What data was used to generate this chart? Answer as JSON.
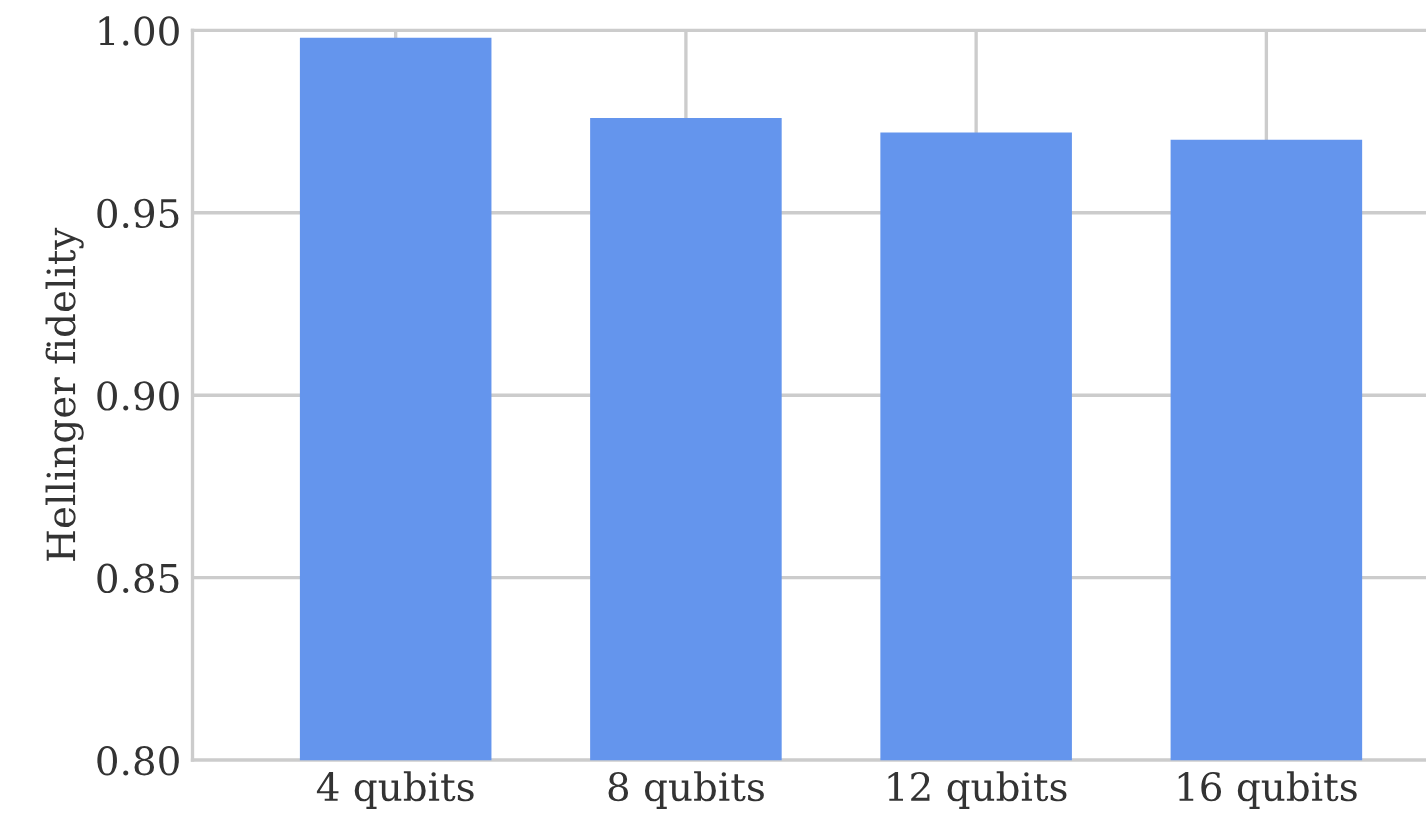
{
  "chart_data": {
    "type": "bar",
    "ylabel": "Hellinger fidelity",
    "categories": [
      "4 qubits",
      "8 qubits",
      "12 qubits",
      "16 qubits"
    ],
    "values": [
      0.998,
      0.976,
      0.972,
      0.97
    ],
    "color": "#6495ed",
    "ylim": [
      0.8,
      1.0
    ],
    "yticks": [
      {
        "value": 0.8,
        "label": "0.80"
      },
      {
        "value": 0.85,
        "label": "0.85"
      },
      {
        "value": 0.9,
        "label": "0.90"
      },
      {
        "value": 0.95,
        "label": "0.95"
      },
      {
        "value": 1.0,
        "label": "1.00"
      }
    ],
    "grid": true
  }
}
